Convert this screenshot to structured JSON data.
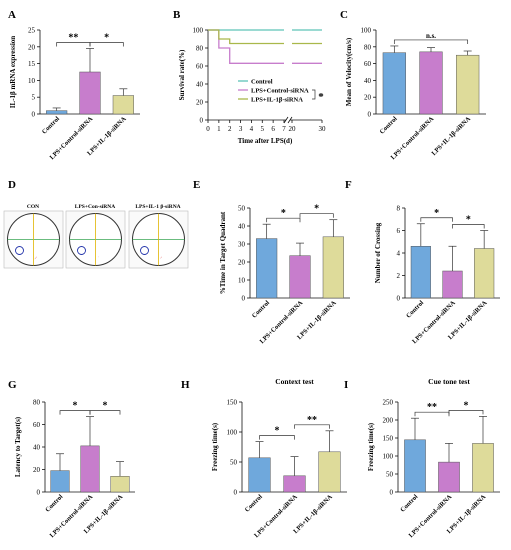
{
  "colors": {
    "control": "#6fa8dc",
    "lps_control": "#c77dcc",
    "lps_il1b": "#dedb9a",
    "line_control": "#5ec4b8",
    "line_lps_control": "#c77dcc",
    "line_lps_il1b": "#a9b84a",
    "axis": "#111111"
  },
  "labels": {
    "control": "Control",
    "lps_control": "LPS+Control-siRNA",
    "lps_il1b": "LPS+IL-1β-siRNA",
    "lps_il1b_mixed": "LPS+IL-1 β-siRNA",
    "lps_con": "LPS+Con-siRNA",
    "con": "CON"
  },
  "chart_data": [
    {
      "panel": "A",
      "type": "bar",
      "ylabel": "IL-1β mRNA expression",
      "ylim": [
        0,
        25
      ],
      "yticks": [
        0,
        5,
        10,
        15,
        20,
        25
      ],
      "categories": [
        "Control",
        "LPS+Control-siRNA",
        "LPS+IL-1β-siRNA"
      ],
      "values": [
        1,
        12.5,
        5.5
      ],
      "errors": [
        0.8,
        7,
        2
      ],
      "significance": [
        {
          "from": 0,
          "to": 1,
          "label": "**"
        },
        {
          "from": 1,
          "to": 2,
          "label": "*"
        }
      ]
    },
    {
      "panel": "B",
      "type": "line",
      "ylabel": "Survival rate(%)",
      "xlabel": "Time after LPS(d)",
      "ylim": [
        0,
        100
      ],
      "yticks": [
        0,
        20,
        40,
        60,
        80,
        100
      ],
      "xticks": [
        "0",
        "1",
        "2",
        "3",
        "4",
        "5",
        "6",
        "7",
        "20",
        "30"
      ],
      "series": [
        {
          "name": "Control",
          "steps": [
            [
              0,
              100
            ],
            [
              7,
              100
            ],
            [
              30,
              100
            ]
          ]
        },
        {
          "name": "LPS+Control-siRNA",
          "steps": [
            [
              0,
              100
            ],
            [
              1,
              100
            ],
            [
              1,
              80
            ],
            [
              2,
              80
            ],
            [
              2,
              63
            ],
            [
              7,
              63
            ],
            [
              30,
              63
            ]
          ]
        },
        {
          "name": "LPS+IL-1β-siRNA",
          "steps": [
            [
              0,
              100
            ],
            [
              1,
              100
            ],
            [
              1,
              90
            ],
            [
              2,
              90
            ],
            [
              2,
              85
            ],
            [
              7,
              85
            ],
            [
              30,
              85
            ]
          ]
        }
      ],
      "significance": "*",
      "legend": "bottom-right"
    },
    {
      "panel": "C",
      "type": "bar",
      "ylabel": "Mean of Velocity(cm/s)",
      "ylim": [
        0,
        100
      ],
      "yticks": [
        0,
        20,
        40,
        60,
        80,
        100
      ],
      "categories": [
        "Control",
        "LPS+Control-siRNA",
        "LPS+IL-1β-siRNA"
      ],
      "values": [
        73,
        74,
        70
      ],
      "errors": [
        8,
        5,
        5
      ],
      "significance": [
        {
          "from": 0,
          "to": 2,
          "label": "n.s."
        }
      ]
    },
    {
      "panel": "E",
      "type": "bar",
      "ylabel": "%Time in Target Quadrant",
      "ylim": [
        0,
        50
      ],
      "yticks": [
        0,
        10,
        20,
        30,
        40,
        50
      ],
      "categories": [
        "Control",
        "LPS+Control-siRNA",
        "LPS+IL-1β-siRNA"
      ],
      "values": [
        33,
        23.5,
        34
      ],
      "errors": [
        8,
        7,
        9.5
      ],
      "significance": [
        {
          "from": 0,
          "to": 1,
          "label": "*"
        },
        {
          "from": 1,
          "to": 2,
          "label": "*"
        }
      ]
    },
    {
      "panel": "F",
      "type": "bar",
      "ylabel": "Number of Crossing",
      "ylim": [
        0,
        8
      ],
      "yticks": [
        0,
        2,
        4,
        6,
        8
      ],
      "categories": [
        "Control",
        "LPS+Control-siRNA",
        "LPS+IL-1β-siRNA"
      ],
      "values": [
        4.6,
        2.4,
        4.4
      ],
      "errors": [
        2,
        2.2,
        1.6
      ],
      "significance": [
        {
          "from": 0,
          "to": 1,
          "label": "*"
        },
        {
          "from": 1,
          "to": 2,
          "label": "*"
        }
      ]
    },
    {
      "panel": "G",
      "type": "bar",
      "ylabel": "Latency to Target(s)",
      "ylim": [
        0,
        80
      ],
      "yticks": [
        0,
        20,
        40,
        60,
        80
      ],
      "categories": [
        "Control",
        "LPS+Control-siRNA",
        "LPS+IL-1β-siRNA"
      ],
      "values": [
        19,
        41,
        14
      ],
      "errors": [
        15,
        26,
        13
      ],
      "significance": [
        {
          "from": 0,
          "to": 1,
          "label": "*"
        },
        {
          "from": 1,
          "to": 2,
          "label": "*"
        }
      ]
    },
    {
      "panel": "H",
      "type": "bar",
      "title": "Context test",
      "ylabel": "Freezing time(s)",
      "ylim": [
        0,
        150
      ],
      "yticks": [
        0,
        50,
        100,
        150
      ],
      "categories": [
        "Control",
        "LPS+Control-siRNA",
        "LPS+IL-1β-siRNA"
      ],
      "values": [
        57,
        27,
        67
      ],
      "errors": [
        27,
        32,
        35
      ],
      "significance": [
        {
          "from": 0,
          "to": 1,
          "label": "*"
        },
        {
          "from": 1,
          "to": 2,
          "label": "**"
        }
      ]
    },
    {
      "panel": "I",
      "type": "bar",
      "title": "Cue tone test",
      "ylabel": "Freezing time(s)",
      "ylim": [
        0,
        250
      ],
      "yticks": [
        0,
        50,
        100,
        150,
        200,
        250
      ],
      "categories": [
        "Control",
        "LPS+Control-siRNA",
        "LPS+IL-1β-siRNA"
      ],
      "values": [
        145,
        83,
        135
      ],
      "errors": [
        60,
        52,
        75
      ],
      "significance": [
        {
          "from": 0,
          "to": 1,
          "label": "**"
        },
        {
          "from": 1,
          "to": 2,
          "label": "*"
        }
      ]
    }
  ],
  "maze_panel": {
    "panel": "D",
    "images": [
      "CON",
      "LPS+Con-siRNA",
      "LPS+IL-1 β-siRNA"
    ]
  }
}
